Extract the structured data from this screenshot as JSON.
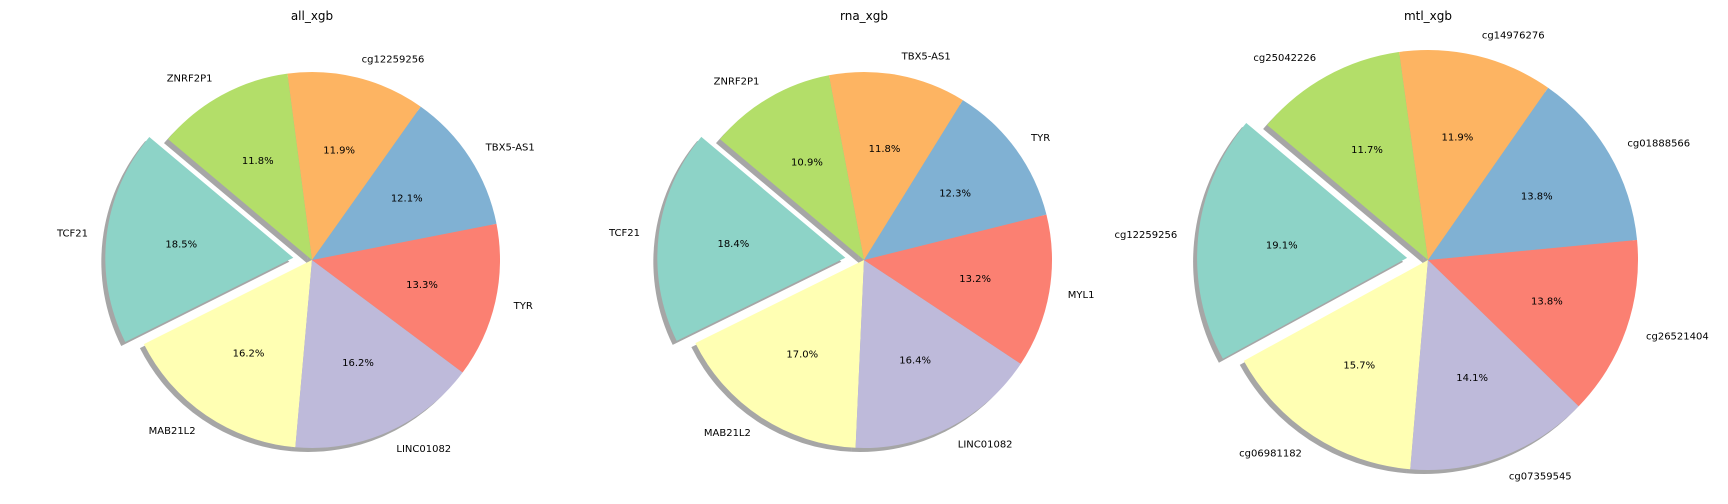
{
  "chart_data": [
    {
      "type": "pie",
      "title": "all_xgb",
      "labels": [
        "TCF21",
        "MAB21L2",
        "LINC01082",
        "TYR",
        "TBX5-AS1",
        "cg12259256",
        "ZNRF2P1"
      ],
      "values": [
        18.5,
        16.2,
        16.2,
        13.3,
        12.1,
        11.9,
        11.8
      ],
      "value_labels": [
        "18.5%",
        "16.2%",
        "16.2%",
        "13.3%",
        "12.1%",
        "11.9%",
        "11.8%"
      ],
      "colors": [
        "#8dd3c7",
        "#ffffb3",
        "#bebada",
        "#fb8072",
        "#80b1d3",
        "#fdb462",
        "#b3de69"
      ],
      "explode": [
        0.1,
        0,
        0,
        0,
        0,
        0,
        0
      ],
      "start_angle": 140,
      "shadow": true
    },
    {
      "type": "pie",
      "title": "rna_xgb",
      "labels": [
        "TCF21",
        "MAB21L2",
        "LINC01082",
        "MYL1",
        "TYR",
        "TBX5-AS1",
        "ZNRF2P1"
      ],
      "values": [
        18.4,
        17.0,
        16.4,
        13.2,
        12.3,
        11.8,
        10.9
      ],
      "value_labels": [
        "18.4%",
        "17.0%",
        "16.4%",
        "13.2%",
        "12.3%",
        "11.8%",
        "10.9%"
      ],
      "colors": [
        "#8dd3c7",
        "#ffffb3",
        "#bebada",
        "#fb8072",
        "#80b1d3",
        "#fdb462",
        "#b3de69"
      ],
      "explode": [
        0.1,
        0,
        0,
        0,
        0,
        0,
        0
      ],
      "start_angle": 140,
      "shadow": true
    },
    {
      "type": "pie",
      "title": "mtl_xgb",
      "labels": [
        "cg12259256",
        "cg06981182",
        "cg07359545",
        "cg26521404",
        "cg01888566",
        "cg14976276",
        "cg25042226"
      ],
      "values": [
        19.1,
        15.7,
        14.1,
        13.8,
        13.8,
        11.9,
        11.7
      ],
      "value_labels": [
        "19.1%",
        "15.7%",
        "14.1%",
        "13.8%",
        "13.8%",
        "11.9%",
        "11.7%"
      ],
      "colors": [
        "#8dd3c7",
        "#ffffb3",
        "#bebada",
        "#fb8072",
        "#80b1d3",
        "#fdb462",
        "#b3de69"
      ],
      "explode": [
        0.1,
        0,
        0,
        0,
        0,
        0,
        0
      ],
      "start_angle": 140,
      "shadow": true
    }
  ]
}
